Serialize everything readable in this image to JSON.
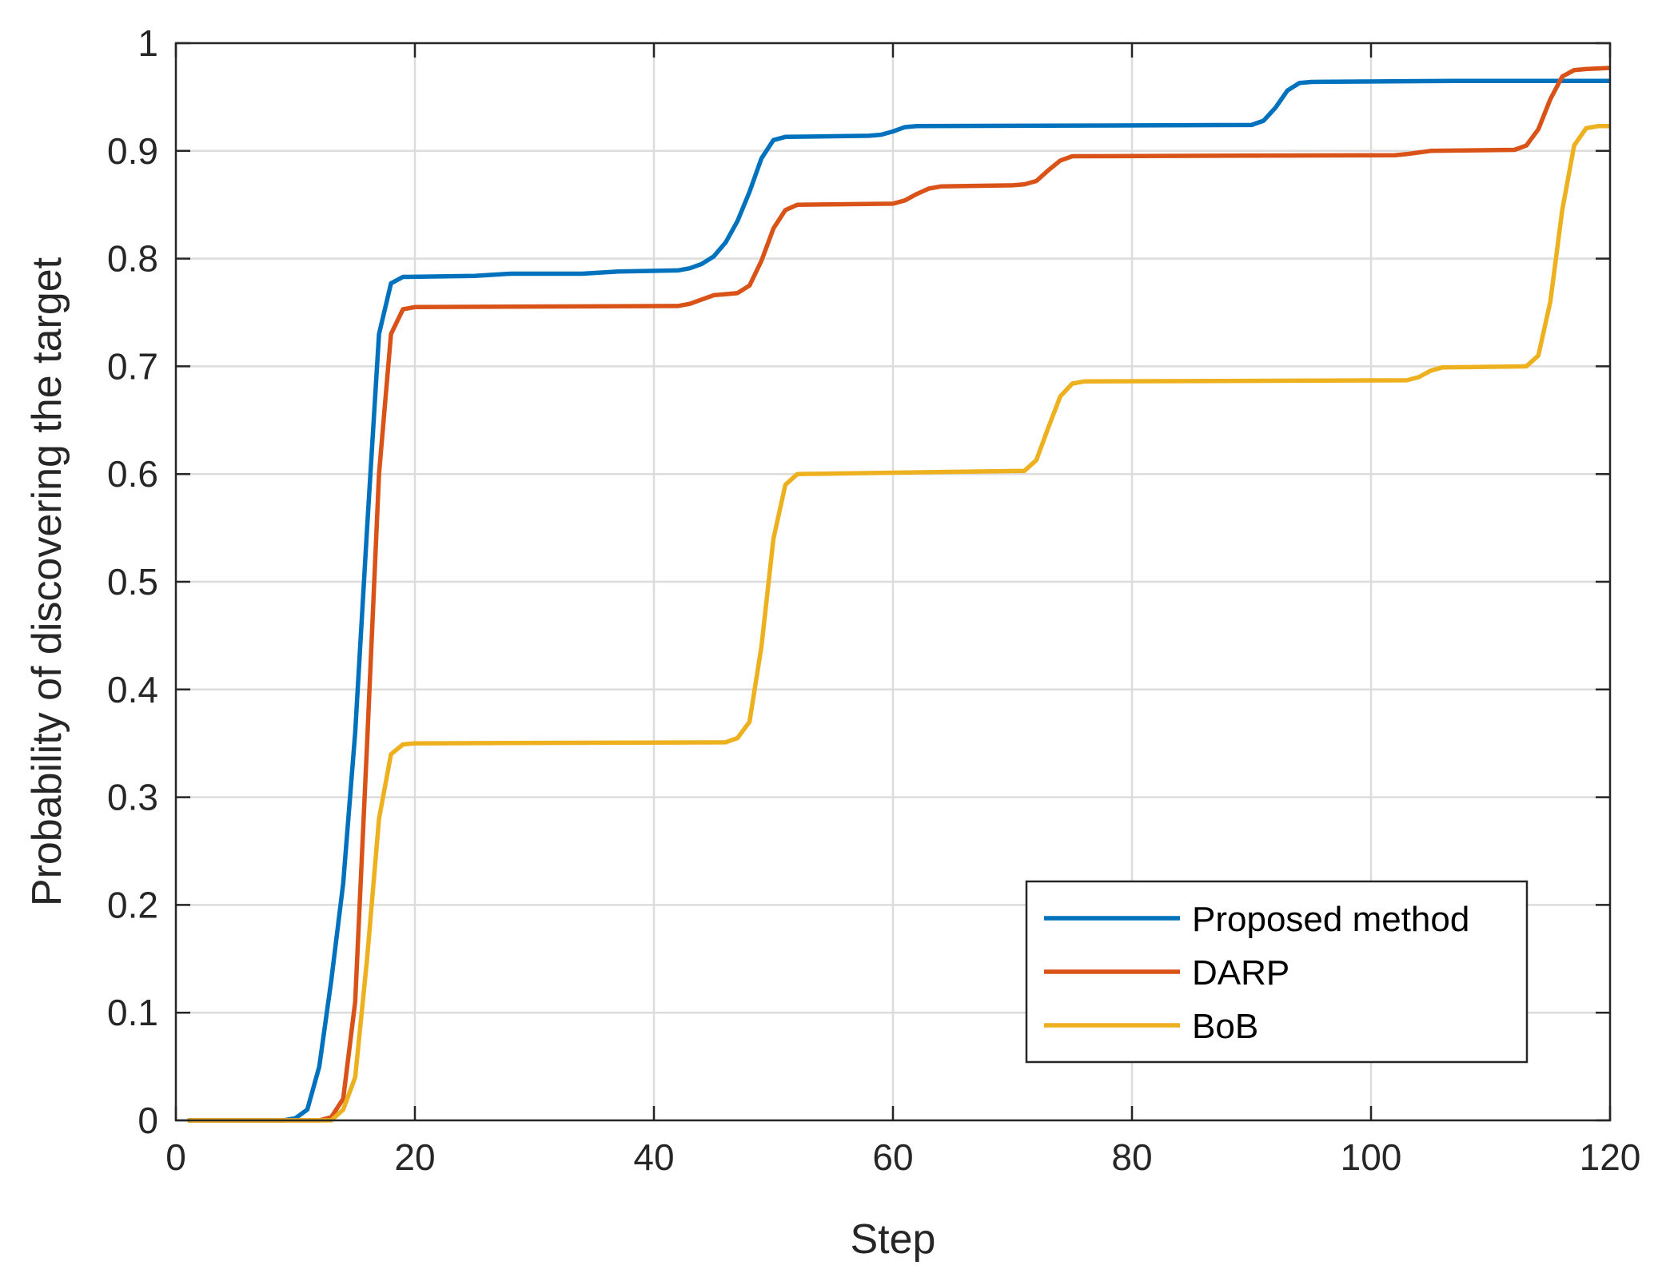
{
  "chart_data": {
    "type": "line",
    "title": "",
    "xlabel": "Step",
    "ylabel": "Probability of discovering the target",
    "xlim": [
      0,
      120
    ],
    "ylim": [
      0,
      1
    ],
    "xticks": [
      0,
      20,
      40,
      60,
      80,
      100,
      120
    ],
    "xtick_labels": [
      "0",
      "20",
      "40",
      "60",
      "80",
      "100",
      "120"
    ],
    "yticks": [
      0,
      0.1,
      0.2,
      0.3,
      0.4,
      0.5,
      0.6,
      0.7,
      0.8,
      0.9,
      1
    ],
    "ytick_labels": [
      "0",
      "0.1",
      "0.2",
      "0.3",
      "0.4",
      "0.5",
      "0.6",
      "0.7",
      "0.8",
      "0.9",
      "1"
    ],
    "grid": true,
    "legend_position": "bottom-right",
    "series": [
      {
        "name": "Proposed method",
        "color": "#0072BD",
        "points": [
          [
            1,
            0
          ],
          [
            9,
            0
          ],
          [
            10,
            0.002
          ],
          [
            11,
            0.01
          ],
          [
            12,
            0.05
          ],
          [
            13,
            0.13
          ],
          [
            14,
            0.22
          ],
          [
            15,
            0.36
          ],
          [
            16,
            0.55
          ],
          [
            17,
            0.73
          ],
          [
            18,
            0.777
          ],
          [
            19,
            0.783
          ],
          [
            25,
            0.784
          ],
          [
            28,
            0.786
          ],
          [
            34,
            0.786
          ],
          [
            37,
            0.788
          ],
          [
            42,
            0.789
          ],
          [
            43,
            0.791
          ],
          [
            44,
            0.795
          ],
          [
            45,
            0.802
          ],
          [
            46,
            0.815
          ],
          [
            47,
            0.835
          ],
          [
            48,
            0.862
          ],
          [
            49,
            0.893
          ],
          [
            50,
            0.91
          ],
          [
            51,
            0.913
          ],
          [
            58,
            0.914
          ],
          [
            59,
            0.915
          ],
          [
            60,
            0.918
          ],
          [
            61,
            0.922
          ],
          [
            62,
            0.923
          ],
          [
            90,
            0.924
          ],
          [
            91,
            0.928
          ],
          [
            92,
            0.94
          ],
          [
            93,
            0.956
          ],
          [
            94,
            0.963
          ],
          [
            95,
            0.964
          ],
          [
            107,
            0.965
          ],
          [
            120,
            0.965
          ]
        ]
      },
      {
        "name": "DARP",
        "color": "#D95319",
        "points": [
          [
            1,
            0
          ],
          [
            12,
            0
          ],
          [
            13,
            0.003
          ],
          [
            14,
            0.02
          ],
          [
            15,
            0.11
          ],
          [
            16,
            0.35
          ],
          [
            17,
            0.6
          ],
          [
            18,
            0.73
          ],
          [
            19,
            0.753
          ],
          [
            20,
            0.755
          ],
          [
            42,
            0.756
          ],
          [
            43,
            0.758
          ],
          [
            44,
            0.762
          ],
          [
            45,
            0.766
          ],
          [
            46,
            0.767
          ],
          [
            47,
            0.768
          ],
          [
            48,
            0.775
          ],
          [
            49,
            0.798
          ],
          [
            50,
            0.828
          ],
          [
            51,
            0.845
          ],
          [
            52,
            0.85
          ],
          [
            60,
            0.851
          ],
          [
            61,
            0.854
          ],
          [
            62,
            0.86
          ],
          [
            63,
            0.865
          ],
          [
            64,
            0.867
          ],
          [
            70,
            0.868
          ],
          [
            71,
            0.869
          ],
          [
            72,
            0.872
          ],
          [
            73,
            0.882
          ],
          [
            74,
            0.891
          ],
          [
            75,
            0.895
          ],
          [
            102,
            0.896
          ],
          [
            103,
            0.897
          ],
          [
            105,
            0.9
          ],
          [
            112,
            0.901
          ],
          [
            113,
            0.905
          ],
          [
            114,
            0.92
          ],
          [
            115,
            0.948
          ],
          [
            116,
            0.969
          ],
          [
            117,
            0.975
          ],
          [
            118,
            0.976
          ],
          [
            120,
            0.977
          ]
        ]
      },
      {
        "name": "BoB",
        "color": "#EDB120",
        "points": [
          [
            1,
            0
          ],
          [
            13,
            0
          ],
          [
            14,
            0.01
          ],
          [
            15,
            0.04
          ],
          [
            16,
            0.15
          ],
          [
            17,
            0.28
          ],
          [
            18,
            0.34
          ],
          [
            19,
            0.349
          ],
          [
            20,
            0.35
          ],
          [
            46,
            0.351
          ],
          [
            47,
            0.355
          ],
          [
            48,
            0.37
          ],
          [
            49,
            0.44
          ],
          [
            50,
            0.54
          ],
          [
            51,
            0.59
          ],
          [
            52,
            0.6
          ],
          [
            71,
            0.603
          ],
          [
            72,
            0.613
          ],
          [
            73,
            0.643
          ],
          [
            74,
            0.672
          ],
          [
            75,
            0.684
          ],
          [
            76,
            0.686
          ],
          [
            103,
            0.687
          ],
          [
            104,
            0.69
          ],
          [
            105,
            0.696
          ],
          [
            106,
            0.699
          ],
          [
            113,
            0.7
          ],
          [
            114,
            0.71
          ],
          [
            115,
            0.76
          ],
          [
            116,
            0.845
          ],
          [
            117,
            0.905
          ],
          [
            118,
            0.921
          ],
          [
            119,
            0.923
          ],
          [
            120,
            0.923
          ]
        ]
      }
    ]
  }
}
